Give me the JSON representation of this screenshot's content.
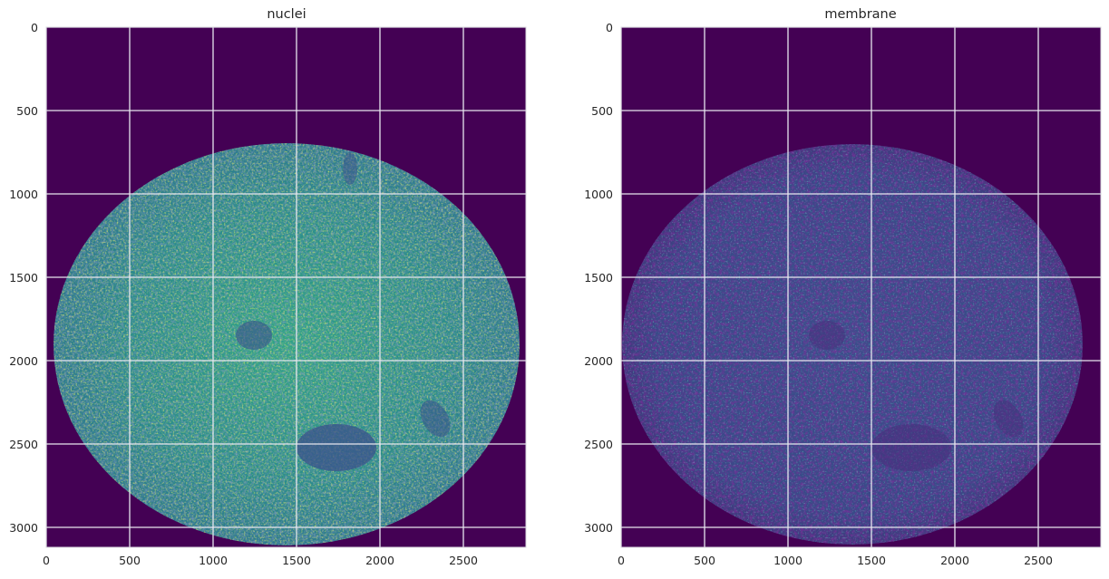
{
  "figure": {
    "panels": [
      {
        "id": "nuclei",
        "title": "nuclei",
        "xticks": [
          "0",
          "500",
          "1000",
          "1500",
          "2000",
          "2500"
        ],
        "yticks": [
          "0",
          "500",
          "1000",
          "1500",
          "2000",
          "2500",
          "3000"
        ],
        "image": {
          "colormap": "viridis",
          "intensity": "high"
        }
      },
      {
        "id": "membrane",
        "title": "membrane",
        "xticks": [
          "0",
          "500",
          "1000",
          "1500",
          "2000",
          "2500"
        ],
        "yticks": [
          "0",
          "500",
          "1000",
          "1500",
          "2000",
          "2500",
          "3000"
        ],
        "image": {
          "colormap": "viridis",
          "intensity": "low"
        }
      }
    ],
    "x_range": [
      0,
      2880
    ],
    "y_range": [
      0,
      3120
    ],
    "tick_values_x": [
      0,
      500,
      1000,
      1500,
      2000,
      2500
    ],
    "tick_values_y": [
      0,
      500,
      1000,
      1500,
      2000,
      2500,
      3000
    ],
    "colors": {
      "background_dark": "#440154",
      "grid": "#e6e6ee",
      "frame": "#d8d8de",
      "viridis_low": "#3b528b",
      "viridis_mid": "#21918c",
      "viridis_high": "#5ec962",
      "viridis_top": "#c8e020"
    }
  }
}
